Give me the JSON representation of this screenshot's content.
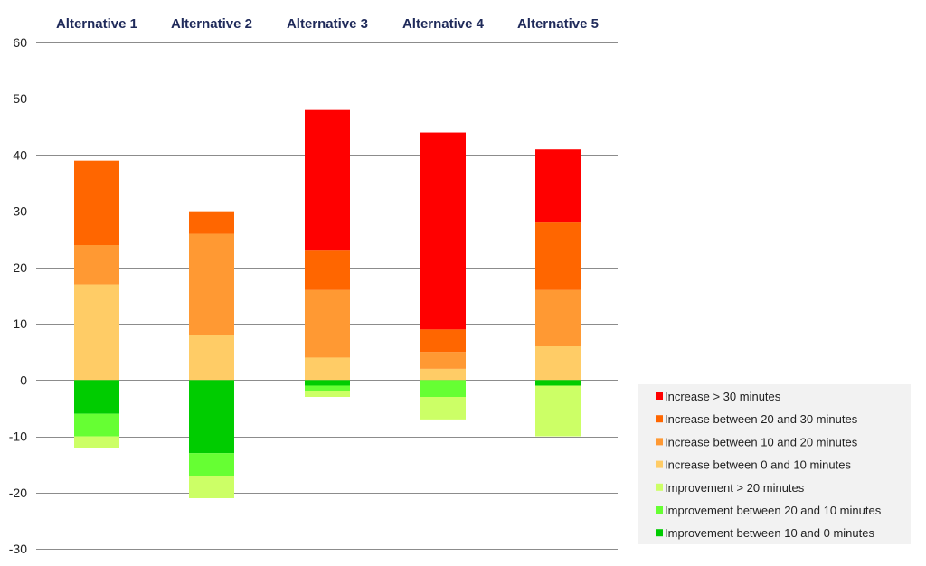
{
  "chart_data": {
    "type": "bar",
    "stacked": true,
    "title": "",
    "xlabel": "",
    "ylabel": "",
    "ylim": [
      -30,
      60
    ],
    "yticks": [
      60,
      50,
      40,
      30,
      20,
      10,
      0,
      -10,
      -20,
      -30
    ],
    "grid": true,
    "legend_position": "bottom-right",
    "categories": [
      "Alternative 1",
      "Alternative 2",
      "Alternative 3",
      "Alternative 4",
      "Alternative 5"
    ],
    "category_label_color": "#1f2a5a",
    "series": [
      {
        "name": "Increase > 30 minutes",
        "color": "#ff0000",
        "values": [
          0,
          0,
          25,
          35,
          13
        ]
      },
      {
        "name": "Increase between 20 and 30 minutes",
        "color": "#ff6600",
        "values": [
          15,
          4,
          7,
          4,
          12
        ]
      },
      {
        "name": "Increase between 10 and 20 minutes",
        "color": "#ff9933",
        "values": [
          7,
          18,
          12,
          3,
          10
        ]
      },
      {
        "name": "Increase between 0 and 10 minutes",
        "color": "#ffcc66",
        "values": [
          17,
          8,
          4,
          2,
          6
        ]
      },
      {
        "name": "Improvement > 20 minutes",
        "color": "#ccff66",
        "values": [
          -2,
          -4,
          -1,
          -4,
          -9
        ]
      },
      {
        "name": "Improvement between 20 and 10 minutes",
        "color": "#66ff33",
        "values": [
          -4,
          -4,
          -1,
          -3,
          0
        ]
      },
      {
        "name": "Improvement between 10 and 0 minutes",
        "color": "#00cc00",
        "values": [
          -6,
          -13,
          -1,
          0,
          -1
        ]
      }
    ],
    "stack_order_positive": [
      3,
      2,
      1,
      0
    ],
    "stack_order_negative": [
      6,
      5,
      4
    ]
  }
}
